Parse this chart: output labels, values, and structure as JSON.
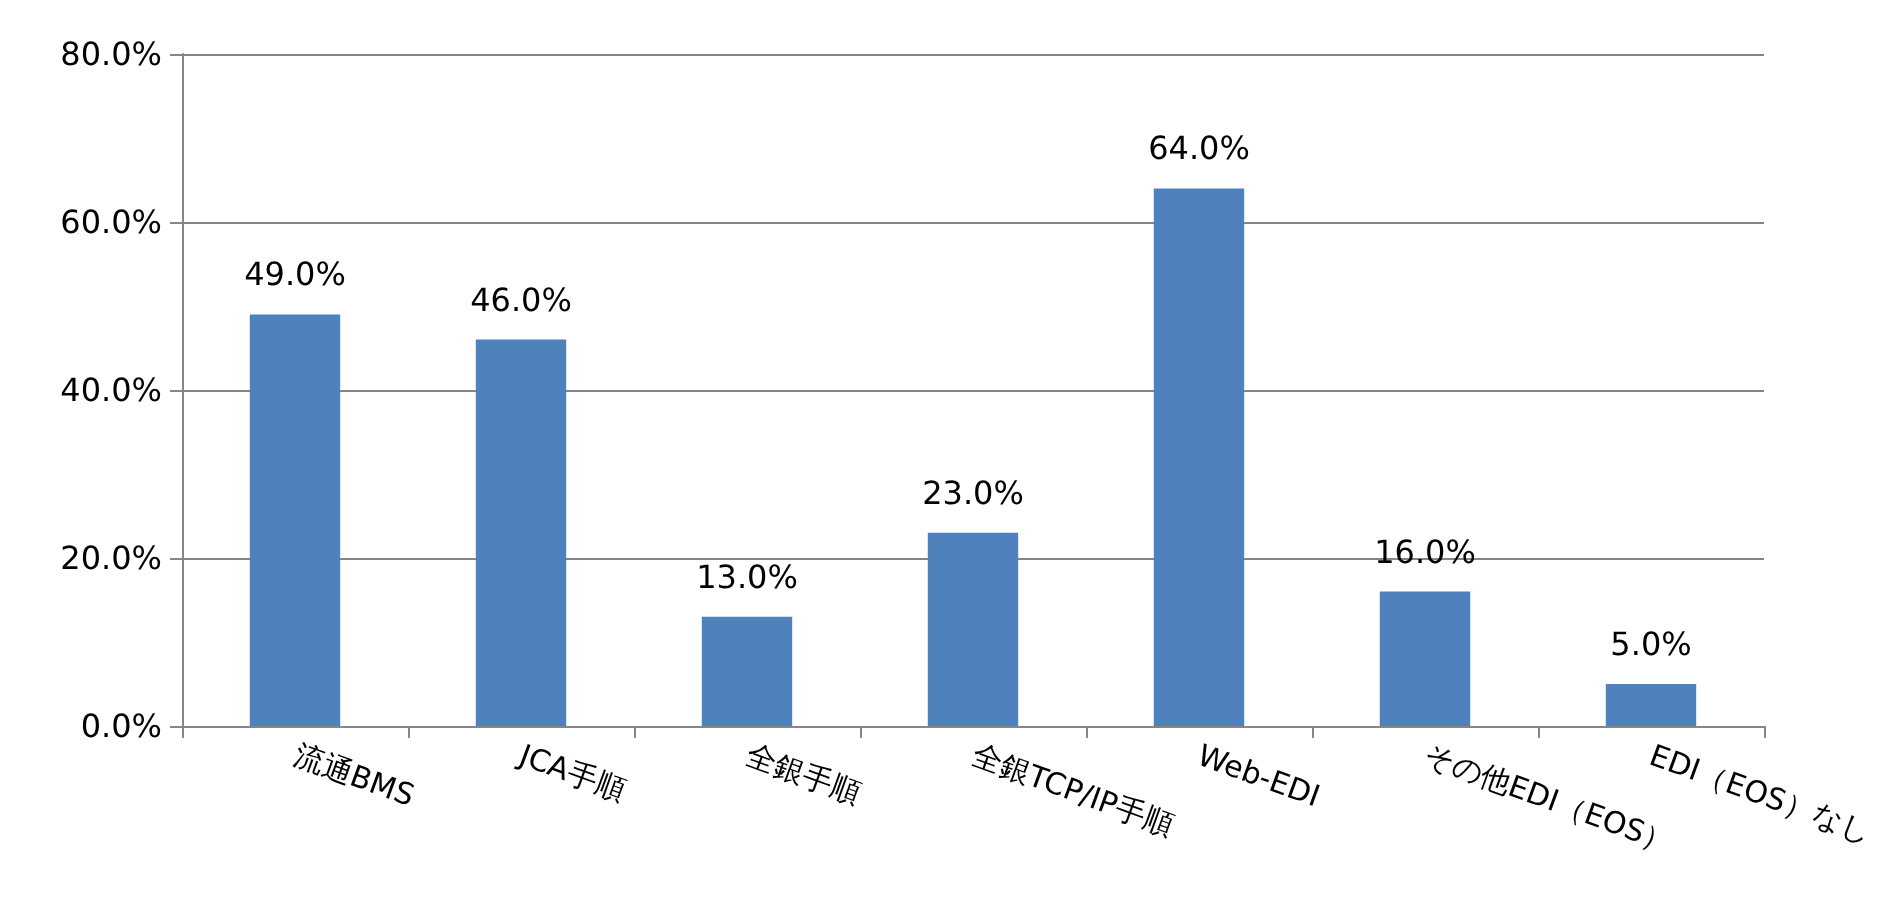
{
  "chart_data": {
    "type": "bar",
    "categories": [
      "流通BMS",
      "JCA手順",
      "全銀手順",
      "全銀TCP/IP手順",
      "Web-EDI",
      "その他EDI（EOS）",
      "EDI（EOS）なし"
    ],
    "values": [
      49,
      46,
      13,
      23,
      64,
      16,
      5
    ],
    "value_labels": [
      "49.0%",
      "46.0%",
      "13.0%",
      "23.0%",
      "64.0%",
      "16.0%",
      "5.0%"
    ],
    "color": "#4f81bd",
    "ylim": [
      0,
      80
    ],
    "yticks": [
      {
        "value": 0,
        "label": "0.0%"
      },
      {
        "value": 20,
        "label": "20.0%"
      },
      {
        "value": 40,
        "label": "40.0%"
      },
      {
        "value": 60,
        "label": "60.0%"
      },
      {
        "value": 80,
        "label": "80.0%"
      }
    ],
    "grid": "y"
  }
}
